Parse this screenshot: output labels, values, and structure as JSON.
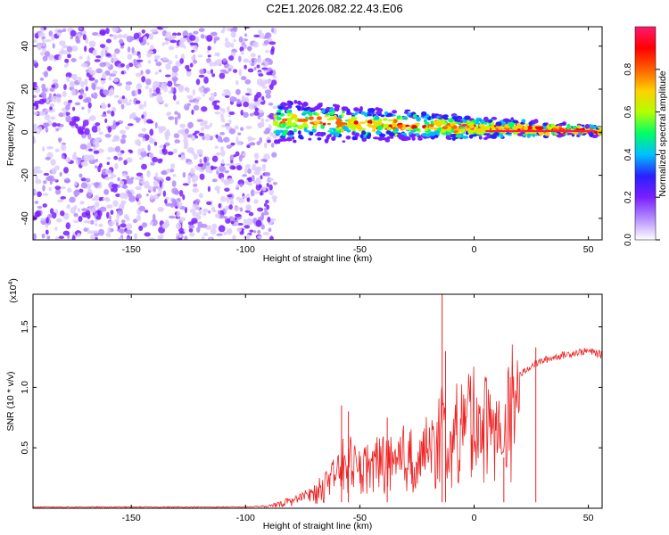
{
  "chart_data": [
    {
      "type": "heatmap",
      "title": "C2E1.2026.082.22.43.E06",
      "xlabel": "Height of straight line (km)",
      "ylabel": "Frequency (Hz)",
      "xlim": [
        -193,
        56
      ],
      "ylim": [
        -50,
        49
      ],
      "xticks": [
        -150,
        -100,
        -50,
        0,
        50
      ],
      "yticks": [
        -40,
        -20,
        0,
        20,
        40
      ],
      "colorbar": {
        "label": "Normalized spectral amplitude",
        "range": [
          0,
          1
        ],
        "ticks": [
          "0.0",
          "0.2",
          "0.4",
          "0.6",
          "0.8"
        ],
        "colors": [
          "#ffffff",
          "#b48cff",
          "#7a1fff",
          "#2a20ff",
          "#00bfff",
          "#00ff66",
          "#b4ff00",
          "#ffd000",
          "#ff6000",
          "#ff0000",
          "#ff1a70"
        ]
      },
      "regions": [
        {
          "name": "noise",
          "x_range": [
            -193,
            -87
          ],
          "freq_range": [
            -50,
            49
          ],
          "amplitude_range": [
            0.0,
            0.35
          ]
        },
        {
          "name": "signal-band",
          "x_range": [
            -87,
            56
          ],
          "center_freq_start": 5,
          "center_freq_end": 0.5,
          "amplitude_range": [
            0.3,
            1.0
          ]
        }
      ]
    },
    {
      "type": "line",
      "title": "",
      "xlabel": "Height of straight line (km)",
      "ylabel": "SNR (10 * v/v)",
      "y_multiplier": "(x10",
      "y_multiplier_exp": "4",
      "xlim": [
        -193,
        56
      ],
      "ylim": [
        0,
        1.77
      ],
      "xticks": [
        -150,
        -100,
        -50,
        0,
        50
      ],
      "yticks": [
        "0.5",
        "1.0",
        "1.5"
      ],
      "ytick_values": [
        0.5,
        1.0,
        1.5
      ],
      "line_color": "#ee2222",
      "series": [
        {
          "name": "SNR",
          "x": [
            -193,
            -150,
            -100,
            -90,
            -80,
            -70,
            -62,
            -58,
            -55,
            -50,
            -45,
            -40,
            -35,
            -30,
            -25,
            -20,
            -16,
            -14,
            -12,
            -10,
            -8,
            -5,
            -2,
            0,
            3,
            6,
            10,
            13,
            16,
            20,
            25,
            30,
            35,
            40,
            45,
            50,
            56
          ],
          "y": [
            0.01,
            0.01,
            0.01,
            0.02,
            0.08,
            0.15,
            0.3,
            0.45,
            0.5,
            0.4,
            0.45,
            0.5,
            0.45,
            0.55,
            0.5,
            0.6,
            0.65,
            0.9,
            0.55,
            0.6,
            0.8,
            0.85,
            0.95,
            0.9,
            0.95,
            0.9,
            0.75,
            0.65,
            1.05,
            1.1,
            1.18,
            1.22,
            1.25,
            1.27,
            1.29,
            1.3,
            1.27
          ]
        }
      ],
      "spikes": [
        {
          "x": -14,
          "y": 1.77
        },
        {
          "x": -12.5,
          "y": 1.3
        },
        {
          "x": -58,
          "y": 0.85
        },
        {
          "x": -55,
          "y": 0.8
        },
        {
          "x": -38,
          "y": 0.75
        },
        {
          "x": 13,
          "y": 0.42
        },
        {
          "x": 27,
          "y": 1.33
        }
      ]
    }
  ]
}
